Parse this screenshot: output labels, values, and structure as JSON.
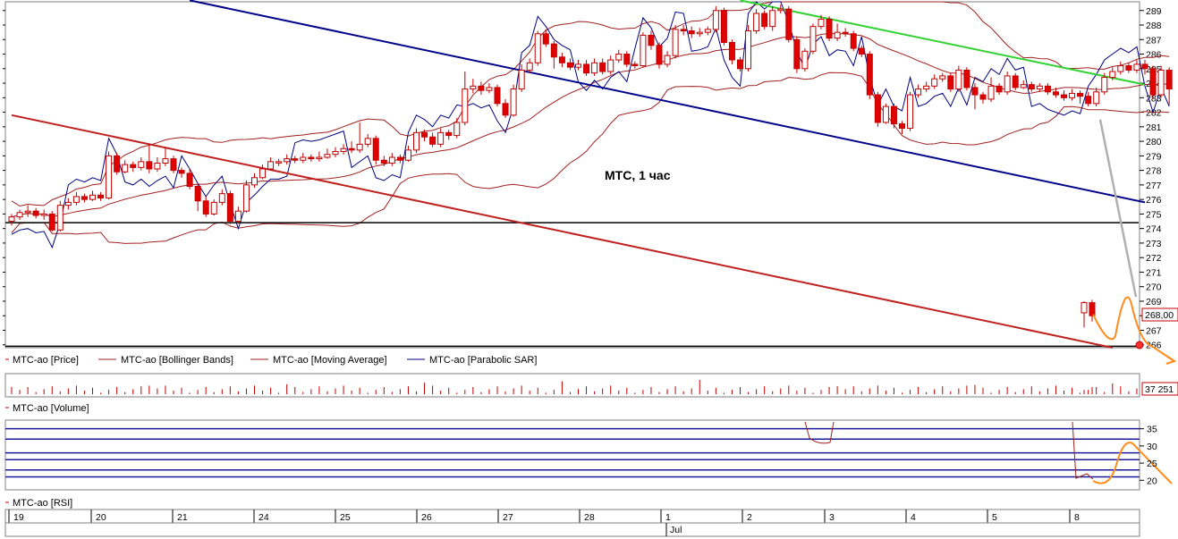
{
  "chart_data": [
    {
      "type": "candlestick",
      "annotation": "МТС,  1 час",
      "y_axis_ticks": [
        266,
        267,
        268,
        269,
        270,
        271,
        272,
        273,
        274,
        275,
        276,
        277,
        278,
        279,
        280,
        281,
        282,
        283,
        284,
        285,
        286,
        287,
        288,
        289
      ],
      "ylim": [
        265.8,
        289.6
      ],
      "last_price_label": "268,00",
      "last_price": 268.0,
      "legend": [
        {
          "name": "MTC-ao [Price]",
          "color": "#c00000"
        },
        {
          "name": "MTC-ao [Bollinger Bands]",
          "color": "#a02020"
        },
        {
          "name": "MTC-ao [Moving Average]",
          "color": "#a02020"
        },
        {
          "name": "MTC-ao [Parabolic SAR]",
          "color": "#000080"
        }
      ],
      "horizontal_levels": [
        274.4,
        265.9
      ],
      "trendlines": [
        {
          "color": "#00008b",
          "from": {
            "bar": 22,
            "y": 289.7
          },
          "to": {
            "bar": 140,
            "y": 275.8
          }
        },
        {
          "color": "#c0201e",
          "from": {
            "bar": 0,
            "y": 281.8
          },
          "to": {
            "bar": 136,
            "y": 265.8
          }
        },
        {
          "color": "#32d232",
          "from": {
            "bar": 90,
            "y": 289.7
          },
          "to": {
            "bar": 140,
            "y": 283.9
          }
        }
      ],
      "forecast": {
        "color": "#ff8c1a",
        "points": [
          [
            268.1
          ],
          [
            266.6
          ],
          [
            268.8
          ],
          [
            265.9
          ],
          [
            265.3
          ]
        ]
      },
      "candles": [
        [
          274.5,
          274.8,
          274.2,
          275.0
        ],
        [
          274.8,
          275.1,
          274.6,
          275.3
        ],
        [
          275.1,
          275.2,
          274.8,
          275.6
        ],
        [
          275.2,
          274.9,
          274.7,
          275.4
        ],
        [
          274.9,
          275.0,
          274.6,
          275.3
        ],
        [
          275.0,
          273.9,
          273.8,
          275.2
        ],
        [
          273.9,
          275.6,
          273.8,
          275.9
        ],
        [
          275.6,
          275.8,
          275.3,
          276.1
        ],
        [
          275.8,
          276.2,
          275.6,
          276.5
        ],
        [
          276.2,
          276.0,
          275.8,
          276.4
        ],
        [
          276.0,
          276.3,
          275.9,
          276.6
        ],
        [
          276.3,
          276.1,
          275.9,
          276.5
        ],
        [
          276.1,
          279.0,
          276.0,
          279.3
        ],
        [
          279.0,
          277.9,
          277.7,
          279.2
        ],
        [
          277.9,
          278.4,
          277.8,
          278.7
        ],
        [
          278.4,
          278.2,
          277.9,
          278.6
        ],
        [
          278.2,
          278.6,
          278.0,
          278.9
        ],
        [
          278.6,
          278.1,
          277.8,
          279.8
        ],
        [
          278.1,
          278.5,
          277.9,
          278.9
        ],
        [
          278.5,
          278.8,
          278.3,
          279.6
        ],
        [
          278.8,
          278.0,
          277.8,
          279.0
        ],
        [
          278.0,
          277.8,
          277.5,
          278.2
        ],
        [
          277.8,
          276.9,
          276.7,
          278.1
        ],
        [
          276.9,
          275.9,
          275.2,
          277.1
        ],
        [
          275.9,
          275.0,
          274.8,
          276.2
        ],
        [
          275.0,
          275.8,
          274.9,
          276.0
        ],
        [
          275.8,
          276.4,
          275.6,
          276.7
        ],
        [
          276.4,
          274.5,
          274.3,
          276.6
        ],
        [
          274.5,
          275.2,
          274.4,
          275.5
        ],
        [
          275.2,
          277.0,
          275.1,
          277.3
        ],
        [
          277.0,
          277.5,
          276.8,
          277.8
        ],
        [
          277.5,
          278.1,
          277.4,
          278.4
        ],
        [
          278.1,
          278.6,
          278.0,
          278.9
        ],
        [
          278.6,
          278.6,
          278.3,
          278.8
        ],
        [
          278.6,
          278.8,
          278.4,
          279.1
        ],
        [
          278.8,
          278.7,
          278.5,
          279.0
        ],
        [
          278.7,
          278.9,
          278.5,
          279.2
        ],
        [
          278.9,
          278.8,
          278.6,
          279.1
        ],
        [
          278.8,
          278.9,
          278.6,
          279.3
        ],
        [
          278.9,
          279.1,
          278.8,
          279.5
        ],
        [
          279.1,
          279.3,
          278.9,
          279.6
        ],
        [
          279.3,
          279.5,
          279.1,
          279.8
        ],
        [
          279.5,
          279.4,
          279.2,
          280.0
        ],
        [
          279.4,
          279.8,
          279.2,
          281.3
        ],
        [
          279.8,
          280.2,
          279.6,
          280.5
        ],
        [
          280.2,
          278.7,
          278.4,
          280.4
        ],
        [
          278.7,
          278.5,
          278.3,
          279.0
        ],
        [
          278.5,
          278.9,
          278.3,
          279.2
        ],
        [
          278.9,
          278.7,
          278.5,
          279.1
        ],
        [
          278.7,
          279.4,
          278.6,
          279.7
        ],
        [
          279.4,
          280.6,
          279.2,
          280.9
        ],
        [
          280.6,
          280.3,
          280.0,
          280.8
        ],
        [
          280.3,
          279.8,
          279.6,
          280.6
        ],
        [
          279.8,
          280.6,
          279.6,
          280.9
        ],
        [
          280.6,
          280.4,
          280.1,
          280.8
        ],
        [
          280.4,
          281.3,
          280.2,
          281.6
        ],
        [
          281.3,
          283.6,
          281.1,
          284.8
        ],
        [
          283.6,
          283.8,
          283.3,
          284.3
        ],
        [
          283.8,
          283.5,
          283.2,
          284.1
        ],
        [
          283.5,
          283.7,
          283.3,
          284.0
        ],
        [
          283.7,
          282.6,
          282.4,
          283.9
        ],
        [
          282.6,
          281.8,
          281.6,
          282.9
        ],
        [
          281.8,
          283.6,
          281.7,
          283.9
        ],
        [
          283.6,
          284.9,
          283.4,
          285.3
        ],
        [
          284.9,
          285.4,
          284.7,
          285.7
        ],
        [
          285.4,
          287.4,
          285.2,
          287.6
        ],
        [
          287.4,
          286.7,
          286.5,
          287.7
        ],
        [
          286.7,
          285.8,
          285.0,
          286.9
        ],
        [
          285.8,
          285.4,
          285.1,
          286.1
        ],
        [
          285.4,
          285.1,
          284.9,
          285.7
        ],
        [
          285.1,
          285.3,
          284.9,
          285.6
        ],
        [
          285.3,
          284.7,
          284.5,
          285.6
        ],
        [
          284.7,
          285.4,
          284.5,
          285.7
        ],
        [
          285.4,
          284.8,
          284.6,
          285.7
        ],
        [
          284.8,
          285.6,
          284.6,
          285.9
        ],
        [
          285.6,
          286.0,
          285.4,
          286.3
        ],
        [
          286.0,
          285.3,
          285.1,
          286.2
        ],
        [
          285.3,
          285.2,
          285.0,
          285.5
        ],
        [
          285.2,
          287.3,
          285.1,
          287.5
        ],
        [
          287.3,
          286.6,
          286.3,
          287.6
        ],
        [
          286.6,
          285.3,
          285.0,
          286.8
        ],
        [
          285.3,
          285.9,
          285.1,
          286.2
        ],
        [
          285.9,
          287.7,
          285.7,
          288.0
        ],
        [
          287.7,
          287.6,
          287.3,
          288.0
        ],
        [
          287.6,
          287.4,
          287.1,
          287.9
        ],
        [
          287.4,
          287.5,
          287.2,
          287.8
        ],
        [
          287.5,
          287.7,
          287.3,
          287.9
        ],
        [
          287.7,
          289.0,
          287.5,
          289.3
        ],
        [
          289.0,
          286.8,
          286.6,
          289.2
        ],
        [
          286.8,
          285.6,
          285.3,
          287.0
        ],
        [
          285.6,
          285.0,
          284.8,
          285.8
        ],
        [
          285.0,
          287.6,
          284.8,
          288.0
        ],
        [
          287.6,
          288.8,
          287.4,
          289.1
        ],
        [
          288.8,
          287.9,
          287.7,
          289.0
        ],
        [
          287.9,
          289.0,
          287.6,
          289.3
        ],
        [
          289.0,
          289.1,
          288.8,
          289.4
        ],
        [
          289.1,
          287.0,
          286.8,
          289.3
        ],
        [
          287.0,
          285.0,
          284.7,
          287.2
        ],
        [
          285.0,
          286.2,
          284.8,
          286.4
        ],
        [
          286.2,
          287.9,
          286.0,
          288.1
        ],
        [
          287.9,
          288.4,
          287.7,
          288.7
        ],
        [
          288.4,
          287.1,
          286.9,
          288.6
        ],
        [
          287.1,
          287.5,
          286.9,
          288.1
        ],
        [
          287.5,
          287.4,
          287.2,
          287.8
        ],
        [
          287.4,
          286.4,
          286.2,
          287.6
        ],
        [
          286.4,
          286.0,
          285.8,
          286.6
        ],
        [
          286.0,
          283.2,
          282.9,
          286.2
        ],
        [
          283.2,
          281.3,
          281.0,
          283.4
        ],
        [
          281.3,
          282.4,
          281.2,
          282.6
        ],
        [
          282.4,
          281.2,
          280.9,
          282.6
        ],
        [
          281.2,
          280.9,
          280.5,
          281.4
        ],
        [
          280.9,
          283.2,
          280.7,
          283.4
        ],
        [
          283.2,
          283.6,
          283.0,
          283.9
        ],
        [
          283.6,
          283.8,
          283.4,
          284.1
        ],
        [
          283.8,
          284.3,
          283.6,
          284.6
        ],
        [
          284.3,
          284.5,
          284.1,
          284.7
        ],
        [
          284.5,
          283.6,
          283.4,
          284.7
        ],
        [
          283.6,
          284.9,
          283.4,
          285.2
        ],
        [
          284.9,
          283.7,
          283.5,
          285.1
        ],
        [
          283.7,
          283.2,
          282.2,
          284.0
        ],
        [
          283.2,
          282.9,
          282.6,
          283.4
        ],
        [
          282.9,
          283.8,
          282.7,
          284.4
        ],
        [
          283.8,
          283.4,
          283.2,
          284.0
        ],
        [
          283.4,
          284.5,
          283.2,
          284.8
        ],
        [
          284.5,
          283.7,
          283.5,
          284.7
        ],
        [
          283.7,
          283.9,
          283.6,
          284.2
        ],
        [
          283.9,
          283.6,
          283.4,
          284.1
        ],
        [
          283.6,
          283.8,
          283.4,
          284.0
        ],
        [
          283.8,
          283.4,
          283.2,
          284.0
        ],
        [
          283.4,
          283.2,
          283.0,
          283.7
        ],
        [
          283.2,
          283.0,
          282.8,
          283.5
        ],
        [
          283.0,
          283.3,
          282.8,
          283.6
        ],
        [
          283.3,
          283.1,
          282.6,
          283.5
        ],
        [
          283.1,
          282.6,
          282.4,
          283.4
        ],
        [
          282.6,
          283.4,
          282.4,
          283.7
        ],
        [
          283.4,
          284.4,
          283.2,
          284.7
        ],
        [
          284.4,
          284.8,
          284.2,
          285.1
        ],
        [
          284.8,
          285.2,
          284.6,
          285.5
        ],
        [
          285.2,
          284.9,
          284.7,
          285.4
        ],
        [
          284.9,
          285.3,
          284.7,
          285.6
        ],
        [
          285.3,
          285.0,
          284.6,
          285.6
        ],
        [
          285.0,
          283.2,
          282.9,
          285.2
        ],
        [
          283.2,
          284.9,
          283.0,
          285.2
        ],
        [
          284.9,
          283.6,
          282.5,
          285.1
        ],
        [
          268.2,
          268.9,
          267.2,
          269.0
        ],
        [
          268.9,
          268.0,
          267.6,
          269.1
        ]
      ],
      "volume_panel": {
        "title": "MTC-ao [Volume]",
        "last_value_label": "37 251"
      },
      "rsi_panel": {
        "title": "MTC-ao [RSI]",
        "y_axis_ticks": [
          20,
          25,
          30,
          35
        ],
        "levels": [
          21,
          23,
          26,
          28,
          32,
          35
        ]
      },
      "x_axis": {
        "day_labels": [
          "19",
          "20",
          "21",
          "24",
          "25",
          "26",
          "27",
          "28",
          "1",
          "2",
          "3",
          "4",
          "5",
          "8"
        ],
        "month_label": "Jul"
      }
    }
  ]
}
